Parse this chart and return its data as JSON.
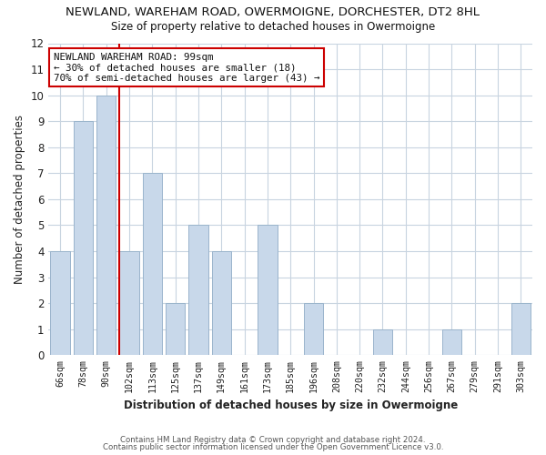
{
  "title": "NEWLAND, WAREHAM ROAD, OWERMOIGNE, DORCHESTER, DT2 8HL",
  "subtitle": "Size of property relative to detached houses in Owermoigne",
  "xlabel": "Distribution of detached houses by size in Owermoigne",
  "ylabel": "Number of detached properties",
  "bar_labels": [
    "66sqm",
    "78sqm",
    "90sqm",
    "102sqm",
    "113sqm",
    "125sqm",
    "137sqm",
    "149sqm",
    "161sqm",
    "173sqm",
    "185sqm",
    "196sqm",
    "208sqm",
    "220sqm",
    "232sqm",
    "244sqm",
    "256sqm",
    "267sqm",
    "279sqm",
    "291sqm",
    "303sqm"
  ],
  "bar_values": [
    4,
    9,
    10,
    4,
    7,
    2,
    5,
    4,
    0,
    5,
    0,
    2,
    0,
    0,
    1,
    0,
    0,
    1,
    0,
    0,
    2
  ],
  "bar_color": "#c8d8ea",
  "bar_edge_color": "#9ab4cc",
  "marker_color": "#cc0000",
  "annotation_title": "NEWLAND WAREHAM ROAD: 99sqm",
  "annotation_line1": "← 30% of detached houses are smaller (18)",
  "annotation_line2": "70% of semi-detached houses are larger (43) →",
  "ylim": [
    0,
    12
  ],
  "yticks": [
    0,
    1,
    2,
    3,
    4,
    5,
    6,
    7,
    8,
    9,
    10,
    11,
    12
  ],
  "footer1": "Contains HM Land Registry data © Crown copyright and database right 2024.",
  "footer2": "Contains public sector information licensed under the Open Government Licence v3.0.",
  "grid_color": "#c8d4e0",
  "background_color": "#ffffff",
  "plot_bg_color": "#ffffff",
  "red_line_x": 2.58
}
